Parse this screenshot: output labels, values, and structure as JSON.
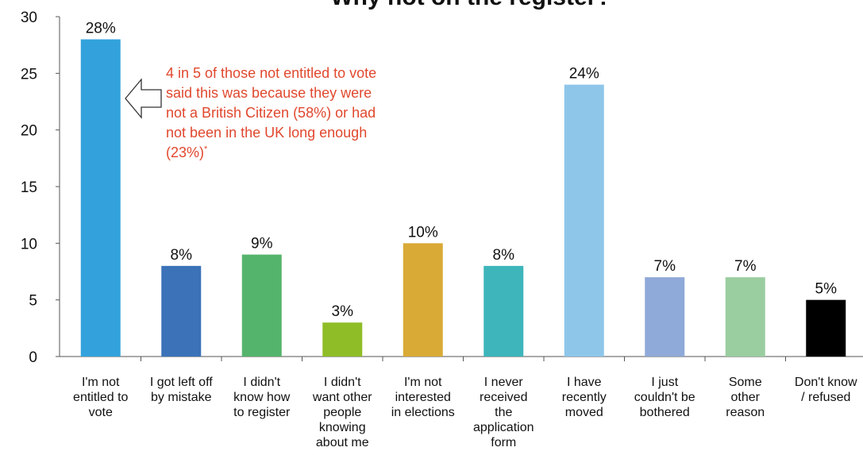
{
  "chart_data": {
    "type": "bar",
    "title": "Why not on the register?",
    "xlabel": "",
    "ylabel": "",
    "ylim": [
      0,
      30
    ],
    "yticks": [
      0,
      5,
      10,
      15,
      20,
      25,
      30
    ],
    "grid": false,
    "legend": "none",
    "categories": [
      [
        "I'm not",
        "entitled to",
        "vote"
      ],
      [
        "I got left off",
        "by mistake"
      ],
      [
        "I didn't",
        "know how",
        "to register"
      ],
      [
        "I didn't",
        "want other",
        "people",
        "knowing",
        "about me"
      ],
      [
        "I'm not",
        "interested",
        "in elections"
      ],
      [
        "I never",
        "received",
        "the",
        "application",
        "form"
      ],
      [
        "I have",
        "recently",
        "moved"
      ],
      [
        "I just",
        "couldn't be",
        "bothered"
      ],
      [
        "Some",
        "other",
        "reason"
      ],
      [
        "Don't know",
        "/ refused"
      ]
    ],
    "values": [
      28,
      8,
      9,
      3,
      10,
      8,
      24,
      7,
      7,
      5
    ],
    "data_labels": [
      "28%",
      "8%",
      "9%",
      "3%",
      "10%",
      "8%",
      "24%",
      "7%",
      "7%",
      "5%"
    ],
    "colors": [
      "#33a2dc",
      "#3b72b8",
      "#55b46b",
      "#8fbd27",
      "#d9aa36",
      "#3db5bb",
      "#8ec6ea",
      "#8fa9d8",
      "#9acd9f",
      "#000000"
    ],
    "annotation": {
      "lines": [
        "4 in 5 of those not entitled to vote",
        "said this was because they were",
        "not a British Citizen (58%) or had",
        "not been in the UK long enough",
        "(23%)"
      ],
      "footnote_mark": "*",
      "color": "#e0482e"
    }
  }
}
